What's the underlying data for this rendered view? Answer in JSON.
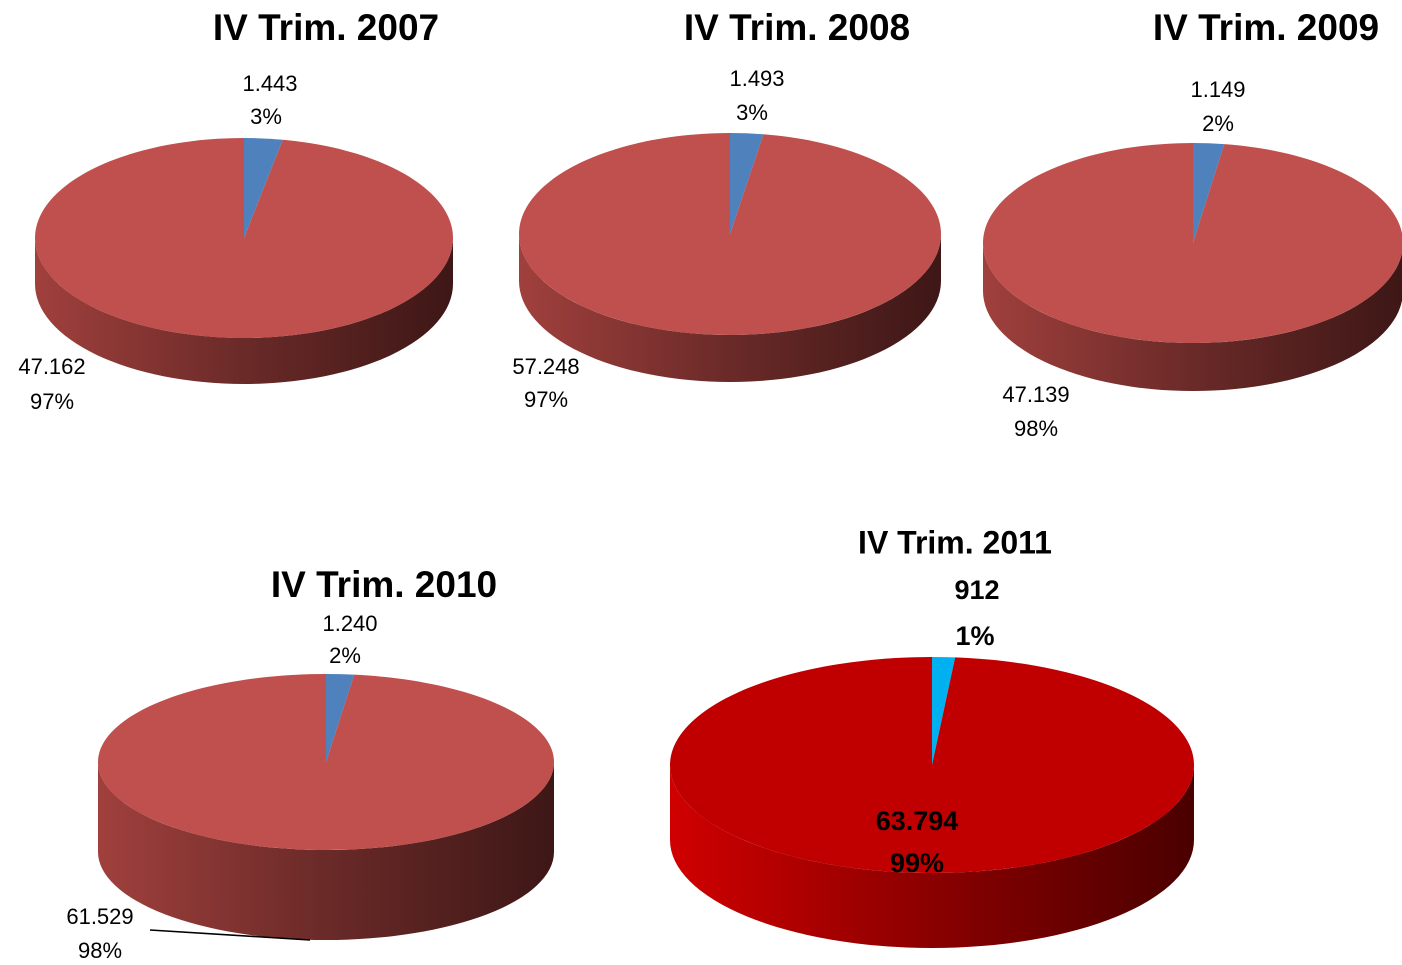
{
  "chart_data": [
    {
      "type": "pie3d",
      "title": "IV Trim. 2007",
      "values": [
        1443,
        47162
      ],
      "value_labels": [
        "1.443",
        "47.162"
      ],
      "percent_labels": [
        "3%",
        "97%"
      ],
      "colors": [
        "#4f81bd",
        "#c0504d"
      ]
    },
    {
      "type": "pie3d",
      "title": "IV Trim. 2008",
      "values": [
        1493,
        57248
      ],
      "value_labels": [
        "1.493",
        "57.248"
      ],
      "percent_labels": [
        "3%",
        "97%"
      ],
      "colors": [
        "#4f81bd",
        "#c0504d"
      ]
    },
    {
      "type": "pie3d",
      "title": "IV Trim. 2009",
      "values": [
        1149,
        47139
      ],
      "value_labels": [
        "1.149",
        "47.139"
      ],
      "percent_labels": [
        "2%",
        "98%"
      ],
      "colors": [
        "#4f81bd",
        "#c0504d"
      ]
    },
    {
      "type": "pie3d",
      "title": "IV Trim. 2010",
      "values": [
        1240,
        61529
      ],
      "value_labels": [
        "1.240",
        "61.529"
      ],
      "percent_labels": [
        "2%",
        "98%"
      ],
      "colors": [
        "#4f81bd",
        "#c0504d"
      ]
    },
    {
      "type": "pie3d",
      "title": "IV Trim. 2011",
      "values": [
        912,
        63794
      ],
      "value_labels": [
        "912",
        "63.794"
      ],
      "percent_labels": [
        "1%",
        "99%"
      ],
      "colors": [
        "#00b0f0",
        "#c00000"
      ]
    }
  ]
}
